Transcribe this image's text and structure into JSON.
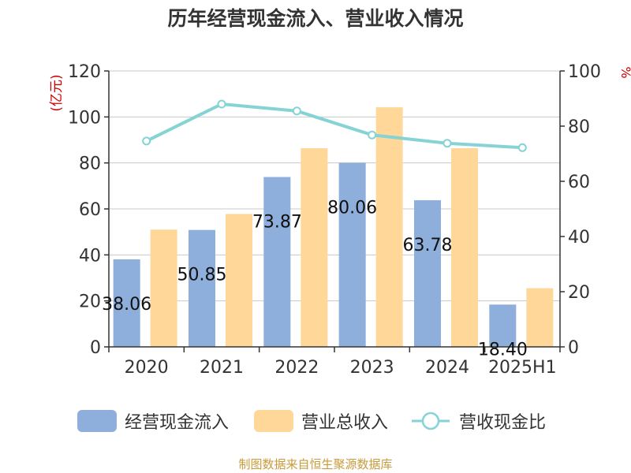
{
  "chart_data": {
    "type": "bar",
    "title": "历年经营现金流入、营业收入情况",
    "categories": [
      "2020",
      "2021",
      "2022",
      "2023",
      "2024",
      "2025H1"
    ],
    "y_left": {
      "unit_label": "(亿元)",
      "ticks": [
        0,
        20,
        40,
        60,
        80,
        100,
        120
      ],
      "range": [
        0,
        120
      ]
    },
    "y_right": {
      "unit_label": "%",
      "ticks": [
        0,
        20,
        40,
        60,
        80,
        100
      ],
      "range": [
        0,
        100
      ]
    },
    "series": [
      {
        "name": "经营现金流入",
        "type": "bar",
        "axis": "left",
        "color": "#8eaedb",
        "values": [
          38.06,
          50.85,
          73.87,
          80.06,
          63.78,
          18.4
        ],
        "value_labels": [
          "38.06",
          "50.85",
          "73.87",
          "80.06",
          "63.78",
          "18.40"
        ]
      },
      {
        "name": "营业总收入",
        "type": "bar",
        "axis": "left",
        "color": "#ffd899",
        "values": [
          51.0,
          57.8,
          86.4,
          104.2,
          86.4,
          25.5
        ]
      },
      {
        "name": "营收现金比",
        "type": "line",
        "axis": "right",
        "color": "#86d3d6",
        "values": [
          74.6,
          88.0,
          85.5,
          76.8,
          73.8,
          72.2
        ]
      }
    ],
    "grid": true,
    "legend_position": "bottom"
  },
  "source": "制图数据来自恒生聚源数据库"
}
